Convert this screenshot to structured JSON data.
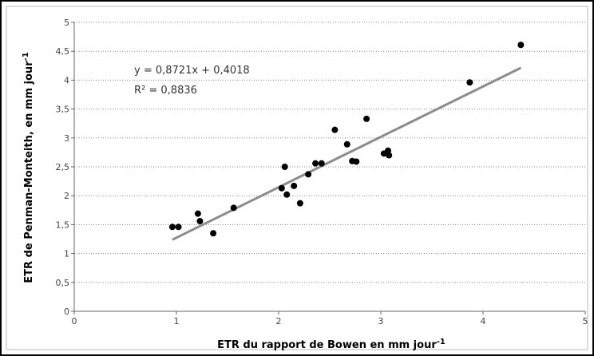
{
  "chart_data": {
    "type": "scatter",
    "xlabel": "ETR du rapport de Bowen en mm jour",
    "xlabel_sup": "-1",
    "ylabel": "ETR de Penman-Monteith, en mm jour",
    "ylabel_sup": "-1",
    "annotations": [
      "y = 0,8721x + 0,4018",
      "R² = 0,8836"
    ],
    "x": [
      0.96,
      1.02,
      1.21,
      1.23,
      1.36,
      1.56,
      2.03,
      2.06,
      2.08,
      2.15,
      2.21,
      2.29,
      2.36,
      2.42,
      2.55,
      2.67,
      2.72,
      2.76,
      2.86,
      3.03,
      3.07,
      3.08,
      3.87,
      4.37
    ],
    "values": [
      1.46,
      1.46,
      1.69,
      1.56,
      1.35,
      1.79,
      2.13,
      2.5,
      2.02,
      2.17,
      1.87,
      2.37,
      2.56,
      2.56,
      3.14,
      2.89,
      2.6,
      2.59,
      3.33,
      2.73,
      2.78,
      2.7,
      3.96,
      4.61
    ],
    "color": "#000000",
    "trendline": {
      "x": [
        0.96,
        4.37
      ],
      "values": [
        1.239,
        4.213
      ],
      "color": "#8c8c8c"
    },
    "xlim": [
      0,
      5
    ],
    "xticks": [
      0,
      1,
      2,
      3,
      4,
      5
    ],
    "ylim": [
      0,
      5
    ],
    "yticks": [
      0,
      {
        "value": 0.5,
        "label": "0,5"
      },
      1,
      {
        "value": 1.5,
        "label": "1,5"
      },
      2,
      {
        "value": 2.5,
        "label": "2,5"
      },
      3,
      {
        "value": 3.5,
        "label": "3,5"
      },
      4,
      {
        "value": 4.5,
        "label": "4,5"
      },
      5
    ],
    "grid": true
  }
}
